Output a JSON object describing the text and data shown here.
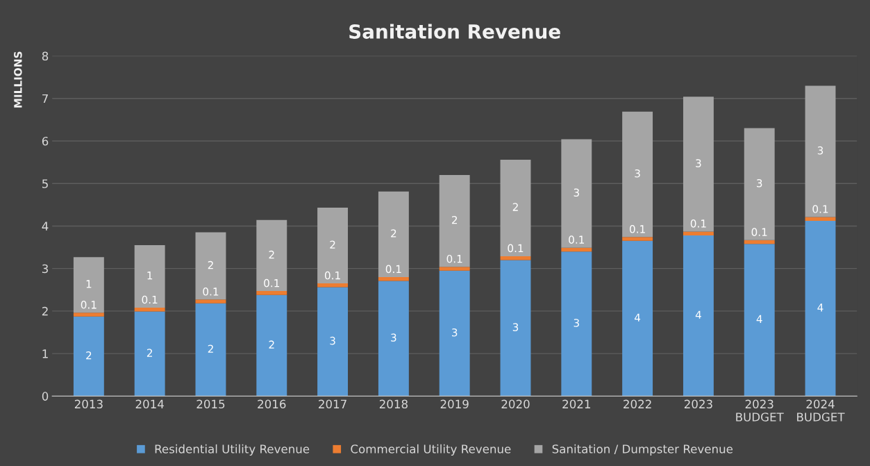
{
  "chart_data": {
    "type": "bar",
    "title": "Sanitation Revenue",
    "ylabel": "MILLIONS",
    "categories": [
      "2013",
      "2014",
      "2015",
      "2016",
      "2017",
      "2018",
      "2019",
      "2020",
      "2021",
      "2022",
      "2023",
      "2023\nBUDGET",
      "2024\nBUDGET"
    ],
    "stacked": true,
    "series": [
      {
        "name": "Residential Utility Revenue",
        "color": "#5b9bd5",
        "values": [
          1.87,
          1.99,
          2.18,
          2.38,
          2.56,
          2.71,
          2.95,
          3.2,
          3.4,
          3.65,
          3.78,
          3.58,
          4.12
        ],
        "value_labels": [
          "2",
          "2",
          "2",
          "2",
          "3",
          "3",
          "3",
          "3",
          "3",
          "4",
          "4",
          "4",
          "4"
        ]
      },
      {
        "name": "Commercial Utility Revenue",
        "color": "#ed7d31",
        "values": [
          0.09,
          0.09,
          0.09,
          0.09,
          0.09,
          0.09,
          0.09,
          0.09,
          0.09,
          0.09,
          0.09,
          0.09,
          0.09
        ],
        "value_labels": [
          "0.1",
          "0.1",
          "0.1",
          "0.1",
          "0.1",
          "0.1",
          "0.1",
          "0.1",
          "0.1",
          "0.1",
          "0.1",
          "0.1",
          "0.1"
        ]
      },
      {
        "name": "Sanitation / Dumpster Revenue",
        "color": "#a5a5a5",
        "values": [
          1.31,
          1.47,
          1.58,
          1.67,
          1.78,
          2.01,
          2.16,
          2.27,
          2.55,
          2.95,
          3.17,
          2.63,
          3.09
        ],
        "value_labels": [
          "1",
          "1",
          "2",
          "2",
          "2",
          "2",
          "2",
          "2",
          "3",
          "3",
          "3",
          "3",
          "3"
        ]
      }
    ],
    "ylim": [
      0,
      8
    ],
    "yticks": [
      0,
      1,
      2,
      3,
      4,
      5,
      6,
      7,
      8
    ],
    "grid": "y",
    "legend": "bottom"
  }
}
